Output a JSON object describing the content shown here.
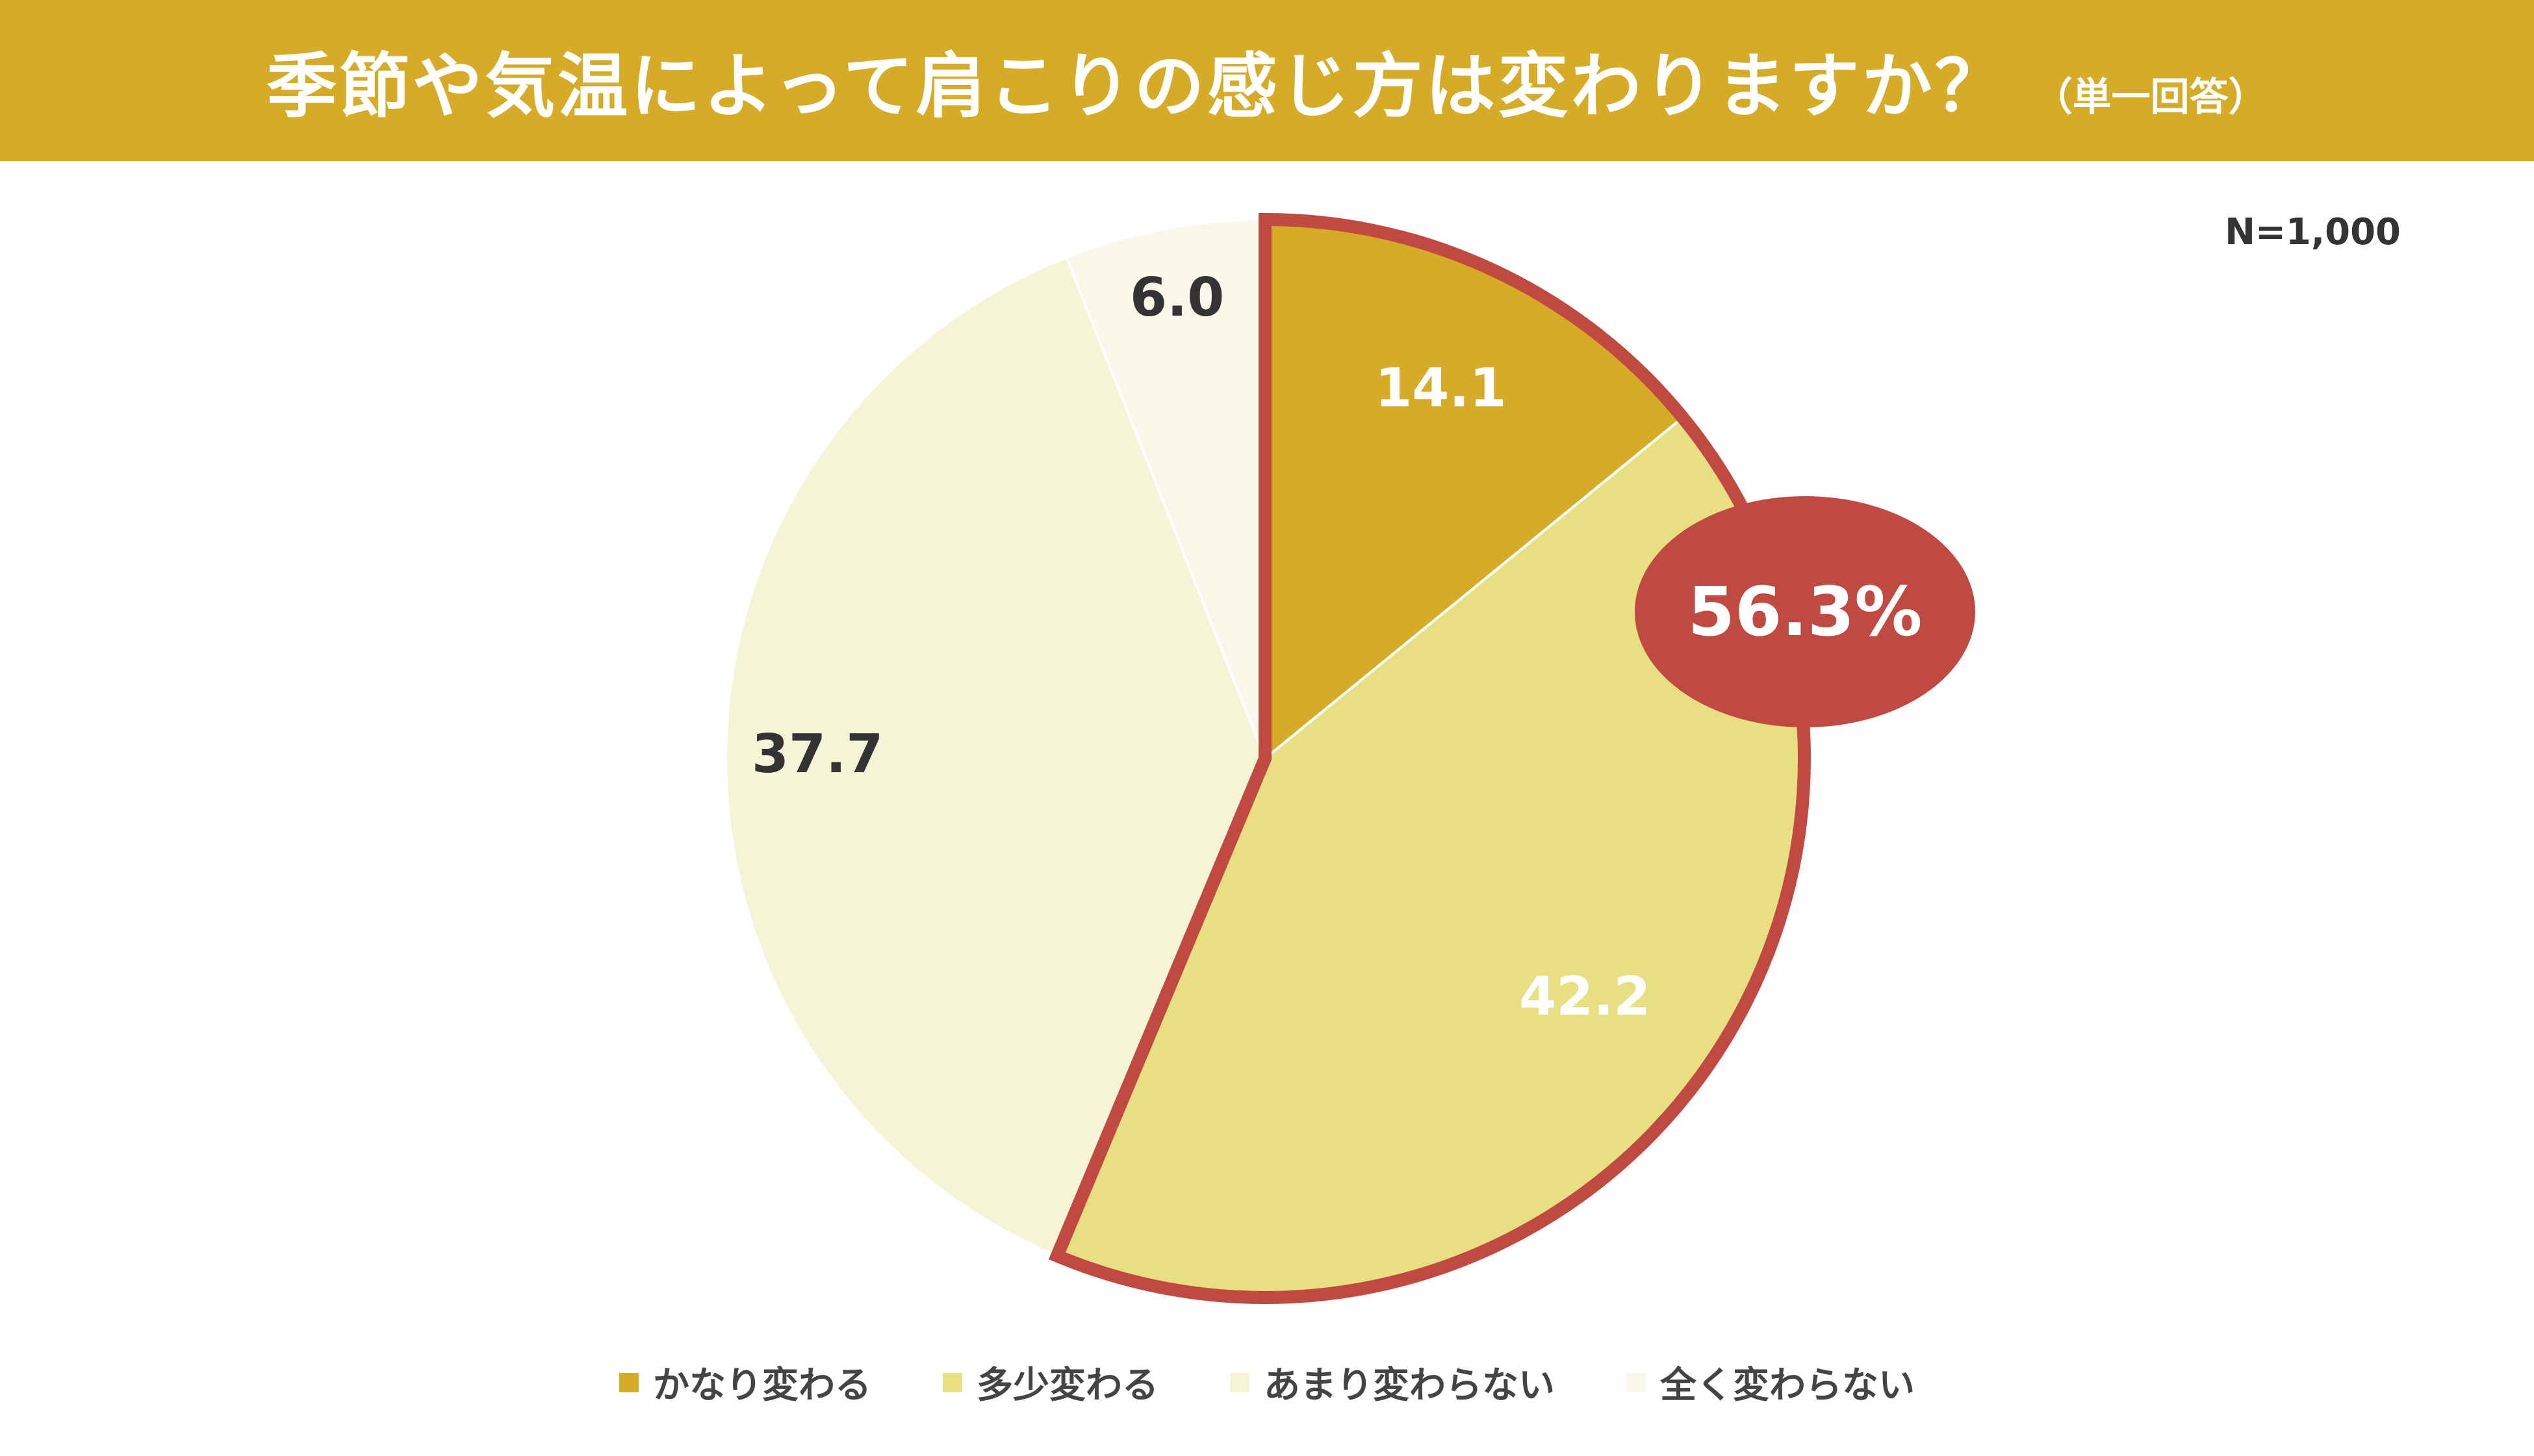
{
  "header": {
    "title": "季節や気温によって肩こりの感じ方は変わりますか？",
    "subtitle": "（単一回答）"
  },
  "sample_size": "N=1,000",
  "chart_data": {
    "type": "pie",
    "title": "季節や気温によって肩こりの感じ方は変わりますか？",
    "categories": [
      "かなり変わる",
      "多少変わる",
      "あまり変わらない",
      "全く変わらない"
    ],
    "values": [
      14.1,
      42.2,
      37.7,
      6.0
    ],
    "value_labels": [
      "14.1",
      "42.2",
      "37.7",
      "6.0"
    ],
    "colors": [
      "#d6ab27",
      "#e8de82",
      "#f6f4d6",
      "#faf7ea"
    ],
    "label_colors": [
      "#ffffff",
      "#ffffff",
      "#333333",
      "#333333"
    ],
    "start_angle": 0,
    "direction": "clockwise",
    "highlight": {
      "segments": [
        0,
        1
      ],
      "label": "56.3%",
      "color": "#c04a42"
    },
    "legend_position": "bottom"
  }
}
